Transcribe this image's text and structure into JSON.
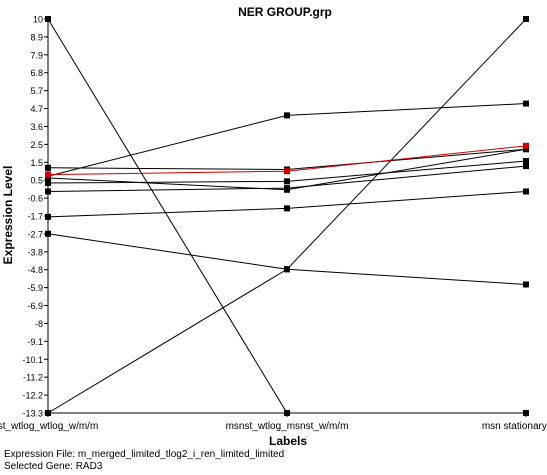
{
  "chart_data": {
    "type": "line",
    "title": "NER GROUP.grp",
    "xlabel": "Labels",
    "ylabel": "Expression Level",
    "categories": [
      "st_wtlog_wtlog_w/m/m",
      "msnst_wtlog_msnst_w/m/m",
      "msn stationary vs lo"
    ],
    "y_ticks": [
      "10",
      "8.9",
      "7.9",
      "6.8",
      "5.7",
      "4.7",
      "3.6",
      "2.5",
      "1.5",
      "0.5",
      "-0.6",
      "-1.7",
      "-2.7",
      "-3.8",
      "-4.8",
      "-5.9",
      "-6.9",
      "-8",
      "-9.1",
      "-10.1",
      "-11.2",
      "-12.2",
      "-13.3"
    ],
    "ylim": [
      -13.3,
      10
    ],
    "grid": false,
    "series": [
      {
        "values": [
          10,
          -13.3,
          -13.3
        ],
        "color": "#000000"
      },
      {
        "values": [
          -13.3,
          -4.8,
          10
        ],
        "color": "#000000"
      },
      {
        "values": [
          0.7,
          4.3,
          5.0
        ],
        "color": "#000000"
      },
      {
        "values": [
          -2.7,
          -4.8,
          -5.7
        ],
        "color": "#000000"
      },
      {
        "values": [
          -1.7,
          -1.2,
          -0.2
        ],
        "color": "#000000"
      },
      {
        "values": [
          -0.2,
          0.0,
          1.3
        ],
        "color": "#000000"
      },
      {
        "values": [
          0.3,
          0.4,
          1.6
        ],
        "color": "#000000"
      },
      {
        "values": [
          1.2,
          1.1,
          2.3
        ],
        "color": "#000000"
      },
      {
        "values": [
          0.6,
          -0.1,
          2.3
        ],
        "color": "#000000"
      },
      {
        "values": [
          0.8,
          1.0,
          2.5
        ],
        "color": "#cc0000"
      }
    ]
  },
  "footer": {
    "expression_file": "Expression File: m_merged_limited_tlog2_i_ren_limited_limited",
    "selected_gene": "Selected Gene: RAD3"
  }
}
